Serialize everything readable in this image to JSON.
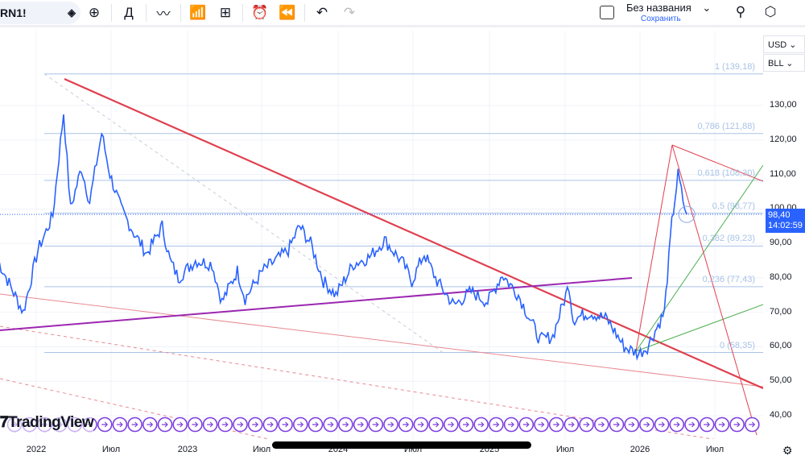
{
  "toolbar": {
    "symbol": "RN1!",
    "indicator_label": "Д",
    "title": "Без названия",
    "save": "Сохранить",
    "icons": [
      "diamond-icon",
      "plus-circle-icon",
      "line-chart-icon",
      "indicators-icon",
      "layouts-icon",
      "alert-icon",
      "replay-icon",
      "undo-icon",
      "redo-icon",
      "checkbox-icon",
      "chevron-down-icon",
      "quick-search-icon",
      "settings-icon"
    ]
  },
  "axis": {
    "currency": "USD",
    "unit": "BLL",
    "y_ticks": [
      "130,00",
      "120,00",
      "110,00",
      "100,00",
      "90,00",
      "80,00",
      "70,00",
      "60,00",
      "50,00",
      "40,00"
    ],
    "x_ticks": [
      "2022",
      "Июл",
      "2023",
      "Июл",
      "2024",
      "Июл",
      "2025",
      "Июл",
      "2026",
      "Июл"
    ]
  },
  "last_price": {
    "value": "98,40",
    "countdown": "14:02:59"
  },
  "fib_levels": [
    {
      "label": "1 (139,18)",
      "price": 139.18
    },
    {
      "label": "0,786 (121,88)",
      "price": 121.88
    },
    {
      "label": "0,618 (108,30)",
      "price": 108.3
    },
    {
      "label": "0,5 (98,77)",
      "price": 98.77
    },
    {
      "label": "0,382 (89,23)",
      "price": 89.23
    },
    {
      "label": "0,236 (77,43)",
      "price": 77.43
    },
    {
      "label": "0 (58,35)",
      "price": 58.35
    }
  ],
  "branding": "TradingView",
  "colors": {
    "price_line": "#2962ff",
    "trendline": "#e0404f",
    "support": "#9c27b0",
    "fan": "#4caf50",
    "fib": "#a9c3e6",
    "label_bg": "#2962ff"
  },
  "chart_data": {
    "type": "line",
    "ylim": [
      35,
      145
    ],
    "series": [
      {
        "values": [
          [
            "2021-10-01",
            85
          ],
          [
            "2021-12-01",
            70
          ],
          [
            "2022-01-05",
            88
          ],
          [
            "2022-02-10",
            98
          ],
          [
            "2022-03-08",
            128
          ],
          [
            "2022-03-25",
            100
          ],
          [
            "2022-04-20",
            112
          ],
          [
            "2022-05-10",
            102
          ],
          [
            "2022-06-08",
            122
          ],
          [
            "2022-06-28",
            110
          ],
          [
            "2022-07-25",
            100
          ],
          [
            "2022-08-25",
            93
          ],
          [
            "2022-09-25",
            87
          ],
          [
            "2022-11-01",
            95
          ],
          [
            "2022-11-20",
            85
          ],
          [
            "2022-12-10",
            80
          ],
          [
            "2023-01-20",
            85
          ],
          [
            "2023-03-01",
            84
          ],
          [
            "2023-03-25",
            73
          ],
          [
            "2023-05-01",
            82
          ],
          [
            "2023-05-20",
            74
          ],
          [
            "2023-07-01",
            82
          ],
          [
            "2023-09-01",
            88
          ],
          [
            "2023-09-28",
            95
          ],
          [
            "2023-10-25",
            90
          ],
          [
            "2023-11-25",
            79
          ],
          [
            "2023-12-25",
            75
          ],
          [
            "2024-02-05",
            84
          ],
          [
            "2024-03-15",
            86
          ],
          [
            "2024-04-20",
            91
          ],
          [
            "2024-06-05",
            84
          ],
          [
            "2024-06-25",
            79
          ],
          [
            "2024-07-25",
            87
          ],
          [
            "2024-08-25",
            79
          ],
          [
            "2024-10-05",
            72
          ],
          [
            "2024-11-15",
            76
          ],
          [
            "2024-12-25",
            73
          ],
          [
            "2025-01-30",
            81
          ],
          [
            "2025-03-10",
            75
          ],
          [
            "2025-05-01",
            62
          ],
          [
            "2025-06-01",
            63
          ],
          [
            "2025-07-10",
            78
          ],
          [
            "2025-07-20",
            68
          ],
          [
            "2025-08-30",
            70
          ],
          [
            "2025-10-10",
            68
          ],
          [
            "2025-11-20",
            60
          ],
          [
            "2025-12-25",
            58
          ],
          [
            "2026-01-15",
            60
          ],
          [
            "2026-02-25",
            70
          ],
          [
            "2026-03-15",
            96
          ],
          [
            "2026-03-30",
            110
          ],
          [
            "2026-04-15",
            100
          ],
          [
            "2026-04-20",
            98.4
          ]
        ]
      }
    ]
  }
}
